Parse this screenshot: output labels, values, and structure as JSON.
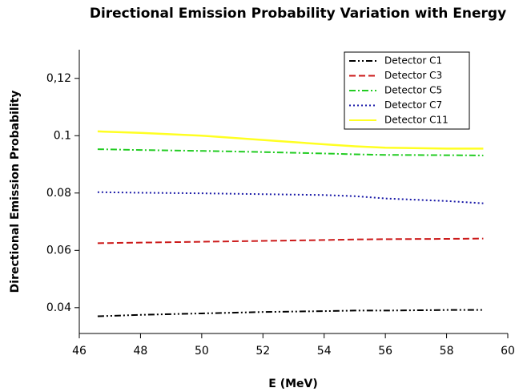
{
  "chart_data": {
    "type": "line",
    "title": "Directional Emission Probability Variation with Energy",
    "x_label": "E (MeV)",
    "y_label": "Directional Emission Probability",
    "x": [
      46.6,
      48,
      50,
      52,
      54,
      55,
      56,
      58,
      59.2
    ],
    "series": [
      {
        "name": "Detector C1",
        "color": "#000000",
        "style": "dash-dot-dot",
        "values": [
          0.037,
          0.0375,
          0.038,
          0.0385,
          0.0388,
          0.039,
          0.039,
          0.0392,
          0.0392
        ]
      },
      {
        "name": "Detector C3",
        "color": "#cc1a1a",
        "style": "dashed",
        "values": [
          0.0625,
          0.0627,
          0.063,
          0.0633,
          0.0636,
          0.0638,
          0.0639,
          0.064,
          0.0641
        ]
      },
      {
        "name": "Detector C5",
        "color": "#22cc22",
        "style": "dash-dot",
        "values": [
          0.0953,
          0.095,
          0.0947,
          0.0943,
          0.0938,
          0.0935,
          0.0933,
          0.0932,
          0.0931
        ]
      },
      {
        "name": "Detector C7",
        "color": "#1a1aa8",
        "style": "dotted",
        "values": [
          0.0803,
          0.0801,
          0.0799,
          0.0796,
          0.0793,
          0.0789,
          0.0781,
          0.0772,
          0.0764
        ]
      },
      {
        "name": "Detector C11",
        "color": "#ffff22",
        "style": "solid",
        "values": [
          0.1015,
          0.101,
          0.1,
          0.0985,
          0.097,
          0.0963,
          0.0958,
          0.0955,
          0.0955
        ]
      }
    ],
    "xlim": [
      46,
      60
    ],
    "xticks": [
      46,
      48,
      50,
      52,
      54,
      56,
      58,
      60
    ],
    "ylim": [
      0.031,
      0.13
    ],
    "yticks": [
      0.04,
      0.06,
      0.08,
      0.1,
      {
        "value": 0.12,
        "label": "0,12"
      }
    ],
    "legend": "upper right",
    "grid": false
  }
}
